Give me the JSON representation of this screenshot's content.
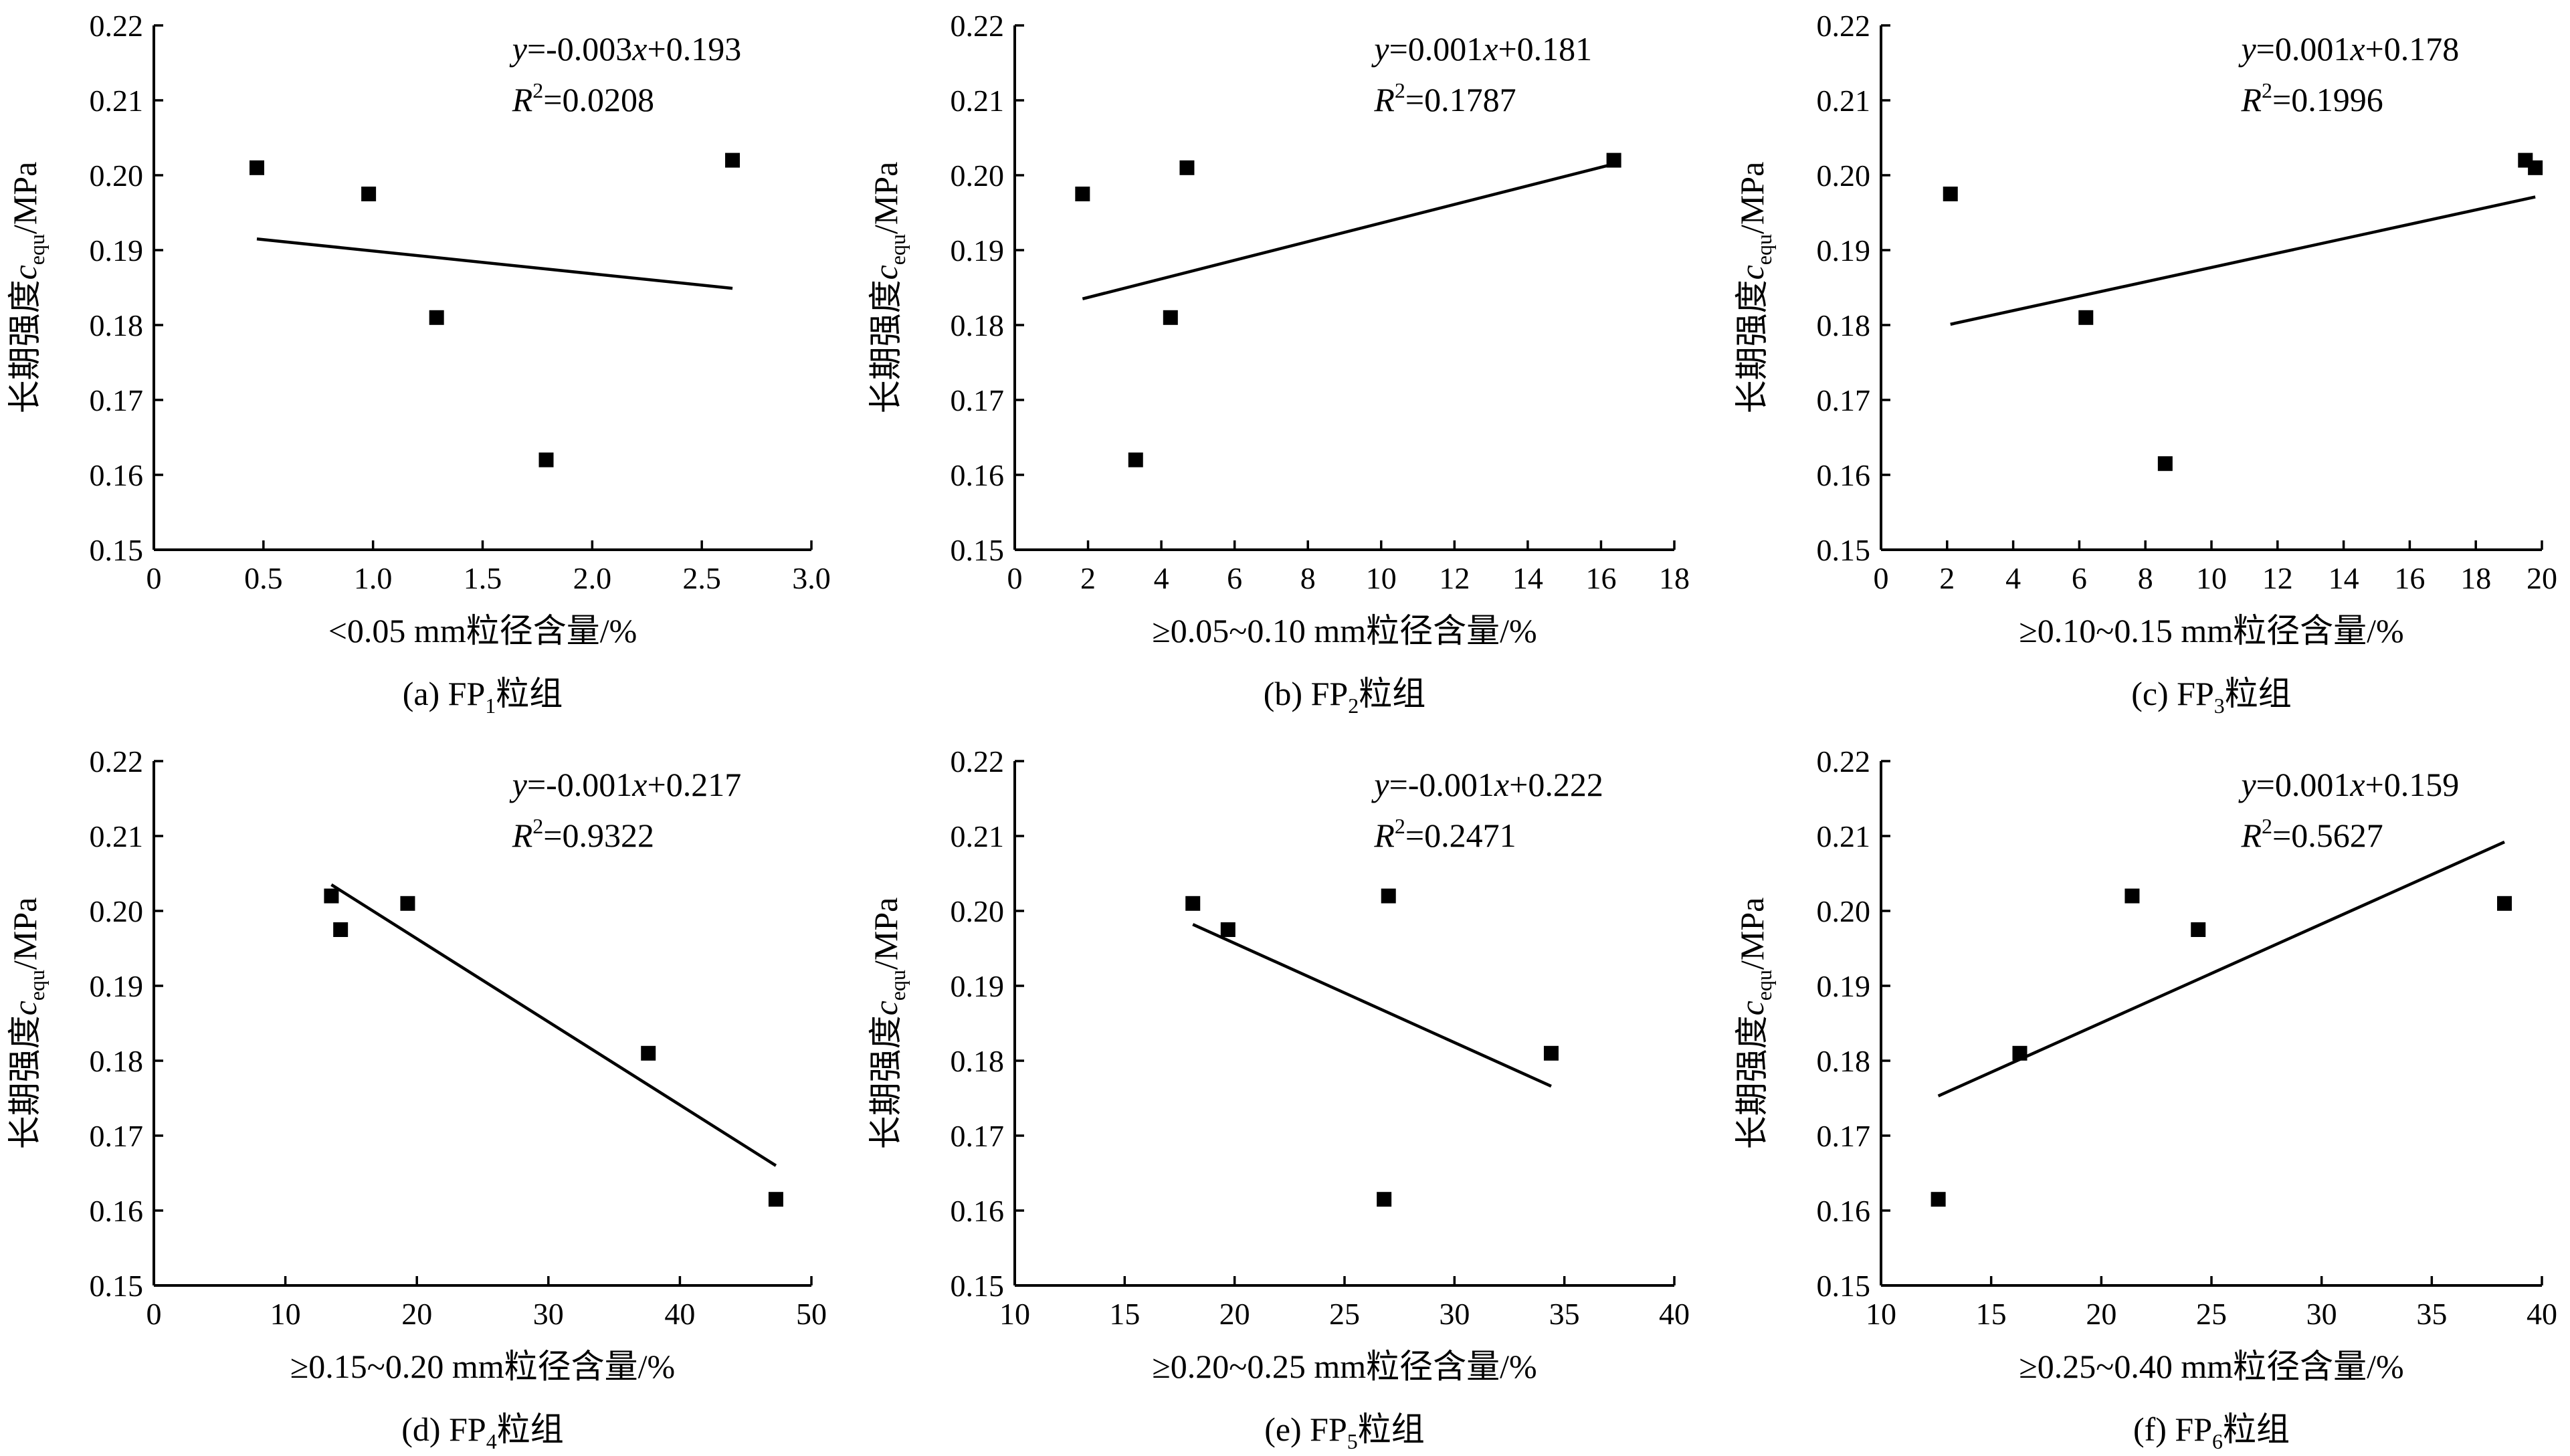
{
  "chart_data": [
    {
      "type": "scatter",
      "panel": "a",
      "caption": {
        "prefix": "(a) FP",
        "sub": "1",
        "suffix": "粒组"
      },
      "xlabel": "<0.05 mm粒径含量/%",
      "ylabel": {
        "prefix": "长期强度",
        "var": "c",
        "sub": "equ",
        "suffix": "/MPa"
      },
      "xlim": [
        0,
        3.0
      ],
      "ylim": [
        0.15,
        0.22
      ],
      "xticks": [
        0,
        0.5,
        1.0,
        1.5,
        2.0,
        2.5,
        3.0
      ],
      "xtick_labels": [
        "0",
        "0.5",
        "1.0",
        "1.5",
        "2.0",
        "2.5",
        "3.0"
      ],
      "yticks": [
        0.15,
        0.16,
        0.17,
        0.18,
        0.19,
        0.2,
        0.21,
        0.22
      ],
      "ytick_labels": [
        "0.15",
        "0.16",
        "0.17",
        "0.18",
        "0.19",
        "0.20",
        "0.21",
        "0.22"
      ],
      "points": [
        {
          "x": 0.47,
          "y": 0.201
        },
        {
          "x": 0.98,
          "y": 0.1975
        },
        {
          "x": 1.29,
          "y": 0.181
        },
        {
          "x": 1.79,
          "y": 0.162
        },
        {
          "x": 2.64,
          "y": 0.202
        }
      ],
      "fit_line": {
        "x": [
          0.47,
          2.64
        ],
        "y": [
          0.1915,
          0.1849
        ]
      },
      "equation": {
        "lhs": "y",
        "rhs_a": "=-0.003",
        "var": "x",
        "rhs_b": "+0.193"
      },
      "r2": {
        "label": "R",
        "sup": "2",
        "value": "=0.0208"
      }
    },
    {
      "type": "scatter",
      "panel": "b",
      "caption": {
        "prefix": "(b) FP",
        "sub": "2",
        "suffix": "粒组"
      },
      "xlabel": "≥0.05~0.10 mm粒径含量/%",
      "ylabel": {
        "prefix": "长期强度",
        "var": "c",
        "sub": "equ",
        "suffix": "/MPa"
      },
      "xlim": [
        0,
        18
      ],
      "ylim": [
        0.15,
        0.22
      ],
      "xticks": [
        0,
        2,
        4,
        6,
        8,
        10,
        12,
        14,
        16,
        18
      ],
      "xtick_labels": [
        "0",
        "2",
        "4",
        "6",
        "8",
        "10",
        "12",
        "14",
        "16",
        "18"
      ],
      "yticks": [
        0.15,
        0.16,
        0.17,
        0.18,
        0.19,
        0.2,
        0.21,
        0.22
      ],
      "ytick_labels": [
        "0.15",
        "0.16",
        "0.17",
        "0.18",
        "0.19",
        "0.20",
        "0.21",
        "0.22"
      ],
      "points": [
        {
          "x": 1.85,
          "y": 0.1975
        },
        {
          "x": 3.3,
          "y": 0.162
        },
        {
          "x": 4.25,
          "y": 0.181
        },
        {
          "x": 4.7,
          "y": 0.201
        },
        {
          "x": 16.35,
          "y": 0.202
        }
      ],
      "fit_line": {
        "x": [
          1.85,
          16.35
        ],
        "y": [
          0.1835,
          0.2015
        ]
      },
      "equation": {
        "lhs": "y",
        "rhs_a": "=0.001",
        "var": "x",
        "rhs_b": "+0.181"
      },
      "r2": {
        "label": "R",
        "sup": "2",
        "value": "=0.1787"
      }
    },
    {
      "type": "scatter",
      "panel": "c",
      "caption": {
        "prefix": "(c) FP",
        "sub": "3",
        "suffix": "粒组"
      },
      "xlabel": "≥0.10~0.15 mm粒径含量/%",
      "ylabel": {
        "prefix": "长期强度",
        "var": "c",
        "sub": "equ",
        "suffix": "/MPa"
      },
      "xlim": [
        0,
        20
      ],
      "ylim": [
        0.15,
        0.22
      ],
      "xticks": [
        0,
        2,
        4,
        6,
        8,
        10,
        12,
        14,
        16,
        18,
        20
      ],
      "xtick_labels": [
        "0",
        "2",
        "4",
        "6",
        "8",
        "10",
        "12",
        "14",
        "16",
        "18",
        "20"
      ],
      "yticks": [
        0.15,
        0.16,
        0.17,
        0.18,
        0.19,
        0.2,
        0.21,
        0.22
      ],
      "ytick_labels": [
        "0.15",
        "0.16",
        "0.17",
        "0.18",
        "0.19",
        "0.20",
        "0.21",
        "0.22"
      ],
      "points": [
        {
          "x": 2.1,
          "y": 0.1975
        },
        {
          "x": 6.2,
          "y": 0.181
        },
        {
          "x": 8.6,
          "y": 0.1615
        },
        {
          "x": 19.5,
          "y": 0.202
        },
        {
          "x": 19.8,
          "y": 0.201
        }
      ],
      "fit_line": {
        "x": [
          2.1,
          19.8
        ],
        "y": [
          0.1801,
          0.1971
        ]
      },
      "equation": {
        "lhs": "y",
        "rhs_a": "=0.001",
        "var": "x",
        "rhs_b": "+0.178"
      },
      "r2": {
        "label": "R",
        "sup": "2",
        "value": "=0.1996"
      }
    },
    {
      "type": "scatter",
      "panel": "d",
      "caption": {
        "prefix": "(d) FP",
        "sub": "4",
        "suffix": "粒组"
      },
      "xlabel": "≥0.15~0.20 mm粒径含量/%",
      "ylabel": {
        "prefix": "长期强度",
        "var": "c",
        "sub": "equ",
        "suffix": "/MPa"
      },
      "xlim": [
        0,
        50
      ],
      "ylim": [
        0.15,
        0.22
      ],
      "xticks": [
        0,
        10,
        20,
        30,
        40,
        50
      ],
      "xtick_labels": [
        "0",
        "10",
        "20",
        "30",
        "40",
        "50"
      ],
      "yticks": [
        0.15,
        0.16,
        0.17,
        0.18,
        0.19,
        0.2,
        0.21,
        0.22
      ],
      "ytick_labels": [
        "0.15",
        "0.16",
        "0.17",
        "0.18",
        "0.19",
        "0.20",
        "0.21",
        "0.22"
      ],
      "points": [
        {
          "x": 13.5,
          "y": 0.202
        },
        {
          "x": 14.2,
          "y": 0.1975
        },
        {
          "x": 19.3,
          "y": 0.201
        },
        {
          "x": 37.6,
          "y": 0.181
        },
        {
          "x": 47.3,
          "y": 0.1615
        }
      ],
      "fit_line": {
        "x": [
          13.5,
          47.3
        ],
        "y": [
          0.2035,
          0.166
        ]
      },
      "equation": {
        "lhs": "y",
        "rhs_a": "=-0.001",
        "var": "x",
        "rhs_b": "+0.217"
      },
      "r2": {
        "label": "R",
        "sup": "2",
        "value": "=0.9322"
      }
    },
    {
      "type": "scatter",
      "panel": "e",
      "caption": {
        "prefix": "(e) FP",
        "sub": "5",
        "suffix": "粒组"
      },
      "xlabel": "≥0.20~0.25 mm粒径含量/%",
      "ylabel": {
        "prefix": "长期强度",
        "var": "c",
        "sub": "equ",
        "suffix": "/MPa"
      },
      "xlim": [
        10,
        40
      ],
      "ylim": [
        0.15,
        0.22
      ],
      "xticks": [
        10,
        15,
        20,
        25,
        30,
        35,
        40
      ],
      "xtick_labels": [
        "10",
        "15",
        "20",
        "25",
        "30",
        "35",
        "40"
      ],
      "yticks": [
        0.15,
        0.16,
        0.17,
        0.18,
        0.19,
        0.2,
        0.21,
        0.22
      ],
      "ytick_labels": [
        "0.15",
        "0.16",
        "0.17",
        "0.18",
        "0.19",
        "0.20",
        "0.21",
        "0.22"
      ],
      "points": [
        {
          "x": 18.1,
          "y": 0.201
        },
        {
          "x": 19.7,
          "y": 0.1975
        },
        {
          "x": 26.8,
          "y": 0.1615
        },
        {
          "x": 27.0,
          "y": 0.202
        },
        {
          "x": 34.4,
          "y": 0.181
        }
      ],
      "fit_line": {
        "x": [
          18.1,
          34.4
        ],
        "y": [
          0.1982,
          0.1766
        ]
      },
      "equation": {
        "lhs": "y",
        "rhs_a": "=-0.001",
        "var": "x",
        "rhs_b": "+0.222"
      },
      "r2": {
        "label": "R",
        "sup": "2",
        "value": "=0.2471"
      }
    },
    {
      "type": "scatter",
      "panel": "f",
      "caption": {
        "prefix": "(f) FP",
        "sub": "6",
        "suffix": "粒组"
      },
      "xlabel": "≥0.25~0.40 mm粒径含量/%",
      "ylabel": {
        "prefix": "长期强度",
        "var": "c",
        "sub": "equ",
        "suffix": "/MPa"
      },
      "xlim": [
        10,
        40
      ],
      "ylim": [
        0.15,
        0.22
      ],
      "xticks": [
        10,
        15,
        20,
        25,
        30,
        35,
        40
      ],
      "xtick_labels": [
        "10",
        "15",
        "20",
        "25",
        "30",
        "35",
        "40"
      ],
      "yticks": [
        0.15,
        0.16,
        0.17,
        0.18,
        0.19,
        0.2,
        0.21,
        0.22
      ],
      "ytick_labels": [
        "0.15",
        "0.16",
        "0.17",
        "0.18",
        "0.19",
        "0.20",
        "0.21",
        "0.22"
      ],
      "points": [
        {
          "x": 12.6,
          "y": 0.1615
        },
        {
          "x": 16.3,
          "y": 0.181
        },
        {
          "x": 21.4,
          "y": 0.202
        },
        {
          "x": 24.4,
          "y": 0.1975
        },
        {
          "x": 38.3,
          "y": 0.201
        }
      ],
      "fit_line": {
        "x": [
          12.6,
          38.3
        ],
        "y": [
          0.1753,
          0.2092
        ]
      },
      "equation": {
        "lhs": "y",
        "rhs_a": "=0.001",
        "var": "x",
        "rhs_b": "+0.159"
      },
      "r2": {
        "label": "R",
        "sup": "2",
        "value": "=0.5627"
      }
    }
  ]
}
